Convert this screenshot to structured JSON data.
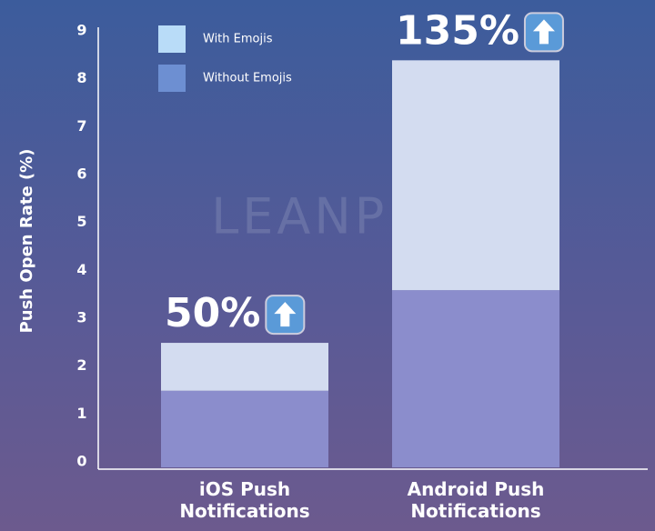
{
  "chart_data": {
    "type": "stacked_bar",
    "y_label": "Push Open Rate (%)",
    "categories": [
      "iOS Push Notifications",
      "Android Push Notifications"
    ],
    "series": [
      {
        "name": "Without Emojis",
        "color": "#8b8dcc",
        "values": [
          1.6,
          3.7
        ]
      },
      {
        "name": "With Emojis",
        "color": "#d3dcf0",
        "values": [
          1.0,
          4.8
        ]
      }
    ],
    "legend_colors": [
      "#b9dcf8",
      "#6d8fd2"
    ],
    "annotations": [
      "50%",
      "135%"
    ],
    "watermark": "LEANPLUM",
    "ylim": [
      0,
      9
    ],
    "yticks": [
      0,
      1,
      2,
      3,
      4,
      5,
      6,
      7,
      8,
      9
    ]
  }
}
